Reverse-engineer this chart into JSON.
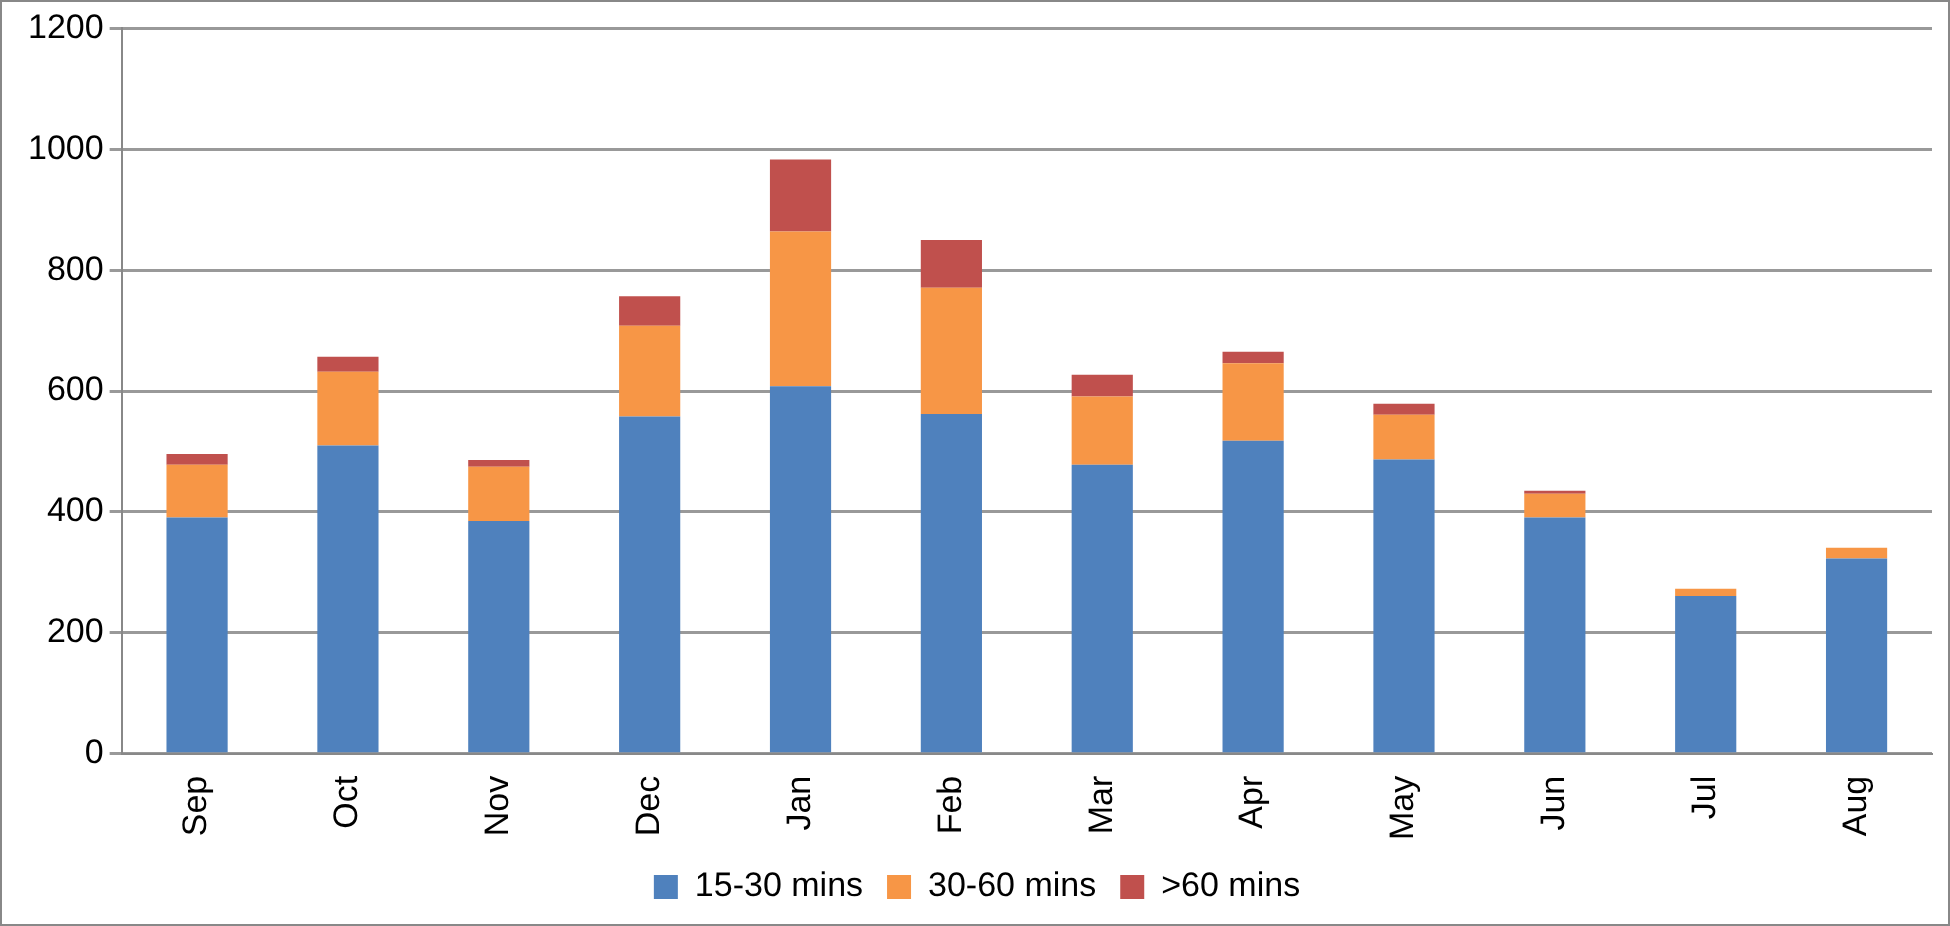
{
  "chart_data": {
    "type": "bar",
    "stacked": true,
    "categories": [
      "Sep",
      "Oct",
      "Nov",
      "Dec",
      "Jan",
      "Feb",
      "Mar",
      "Apr",
      "May",
      "Jun",
      "Jul",
      "Aug"
    ],
    "series": [
      {
        "name": "15-30 mins",
        "color": "#4f81bd",
        "values": [
          391,
          510,
          385,
          558,
          608,
          562,
          478,
          518,
          487,
          391,
          261,
          323
        ]
      },
      {
        "name": "30-60 mins",
        "color": "#f79646",
        "values": [
          87,
          122,
          90,
          150,
          256,
          209,
          113,
          128,
          74,
          39,
          12,
          18
        ]
      },
      {
        "name": ">60 mins",
        "color": "#c0504d",
        "values": [
          18,
          25,
          11,
          49,
          119,
          79,
          36,
          19,
          18,
          5,
          0,
          0
        ]
      }
    ],
    "ylim": [
      0,
      1200
    ],
    "yticks": [
      0,
      200,
      400,
      600,
      800,
      1000,
      1200
    ],
    "grid": "y",
    "legend": "bottom"
  }
}
